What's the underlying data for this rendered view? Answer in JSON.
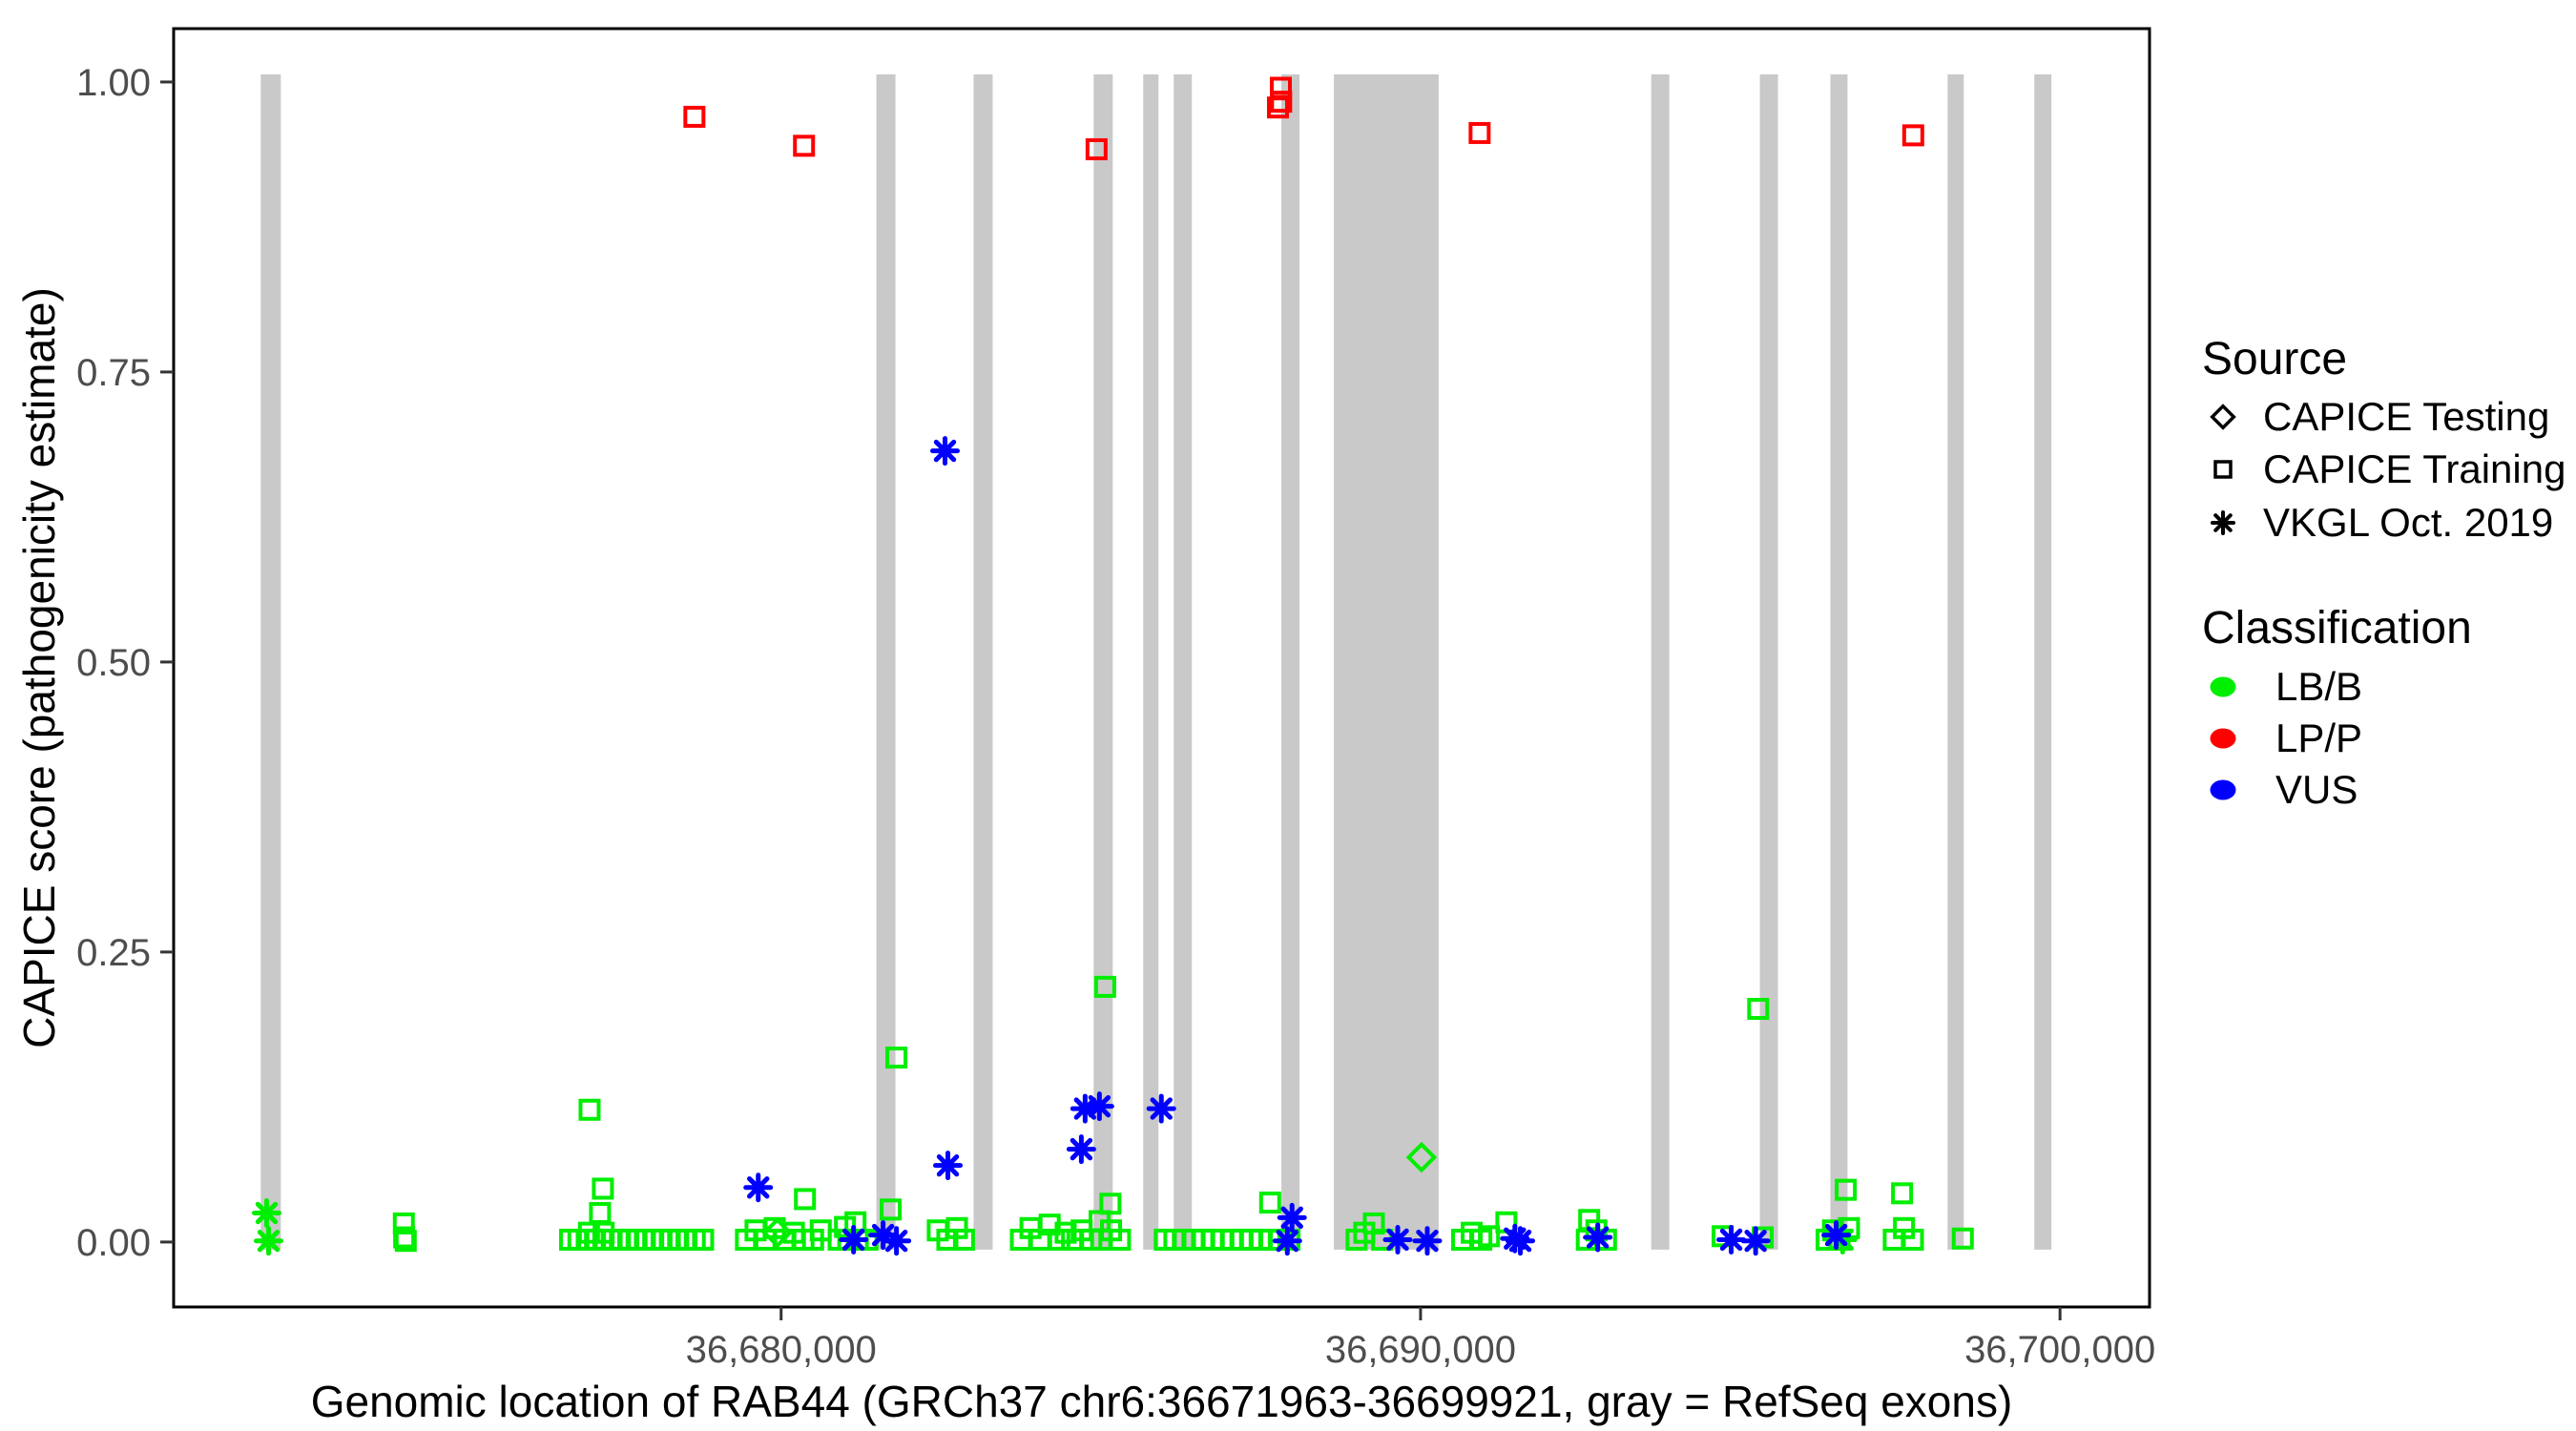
{
  "window": {
    "background": "#ffffff"
  },
  "colors": {
    "exon": "#C9C9C9",
    "panel_border": "#000000",
    "tick": "#333333",
    "axis_text": "#4D4D4D",
    "axis_title": "#000000",
    "legend_icon": "#000000",
    "lbb": "#00EE00",
    "lpp": "#FF0000",
    "vus": "#0000FF"
  },
  "chart_data": {
    "type": "scatter",
    "title": "",
    "xlabel": "Genomic location of RAB44 (GRCh37 chr6:36671963-36699921, gray = RefSeq exons)",
    "ylabel": "CAPICE score (pathogenicity estimate)",
    "x_domain": [
      36670500,
      36701400
    ],
    "y_domain": [
      -0.056,
      1.046
    ],
    "grid": "off",
    "legend_position": "right",
    "x_ticks": [
      {
        "value": 36680000,
        "label": "36,680,000"
      },
      {
        "value": 36690000,
        "label": "36,690,000"
      },
      {
        "value": 36700000,
        "label": "36,700,000"
      }
    ],
    "y_ticks": [
      {
        "value": 0.0,
        "label": "0.00"
      },
      {
        "value": 0.25,
        "label": "0.25"
      },
      {
        "value": 0.5,
        "label": "0.50"
      },
      {
        "value": 0.75,
        "label": "0.75"
      },
      {
        "value": 1.0,
        "label": "1.00"
      }
    ],
    "exon_note": "gray vertical bands = RefSeq exons, spanning score 0 to 1",
    "exons": [
      [
        36671863,
        36672176
      ],
      [
        36681490,
        36681788
      ],
      [
        36683010,
        36683308
      ],
      [
        36684888,
        36685186
      ],
      [
        36685663,
        36685901
      ],
      [
        36686140,
        36686423
      ],
      [
        36687824,
        36688107
      ],
      [
        36688644,
        36690283
      ],
      [
        36693607,
        36693890
      ],
      [
        36695306,
        36695589
      ],
      [
        36696409,
        36696677
      ],
      [
        36698242,
        36698495
      ],
      [
        36699598,
        36699866
      ]
    ],
    "legend": {
      "source": {
        "title": "Source",
        "items": [
          {
            "label": "CAPICE Testing",
            "shape": "diamond"
          },
          {
            "label": "CAPICE Training",
            "shape": "square"
          },
          {
            "label": "VKGL Oct. 2019",
            "shape": "asterisk"
          }
        ]
      },
      "classification": {
        "title": "Classification",
        "items": [
          {
            "label": "LB/B",
            "color": "#00EE00"
          },
          {
            "label": "LP/P",
            "color": "#FF0000"
          },
          {
            "label": "VUS",
            "color": "#0000FF"
          }
        ]
      }
    },
    "series": [
      {
        "name": "CAPICE Training / LB/B",
        "source": "CAPICE Training",
        "classification": "LB/B",
        "shape": "square",
        "color": "#00EE00",
        "points": [
          [
            36674100,
            0.016
          ],
          [
            36674105,
            0.004
          ],
          [
            36674130,
            0.001
          ],
          [
            36677005,
            0.114
          ],
          [
            36677213,
            0.046
          ],
          [
            36677168,
            0.025
          ],
          [
            36676995,
            0.008
          ],
          [
            36677225,
            0.008
          ],
          [
            36676700,
            0.002
          ],
          [
            36676830,
            0.002
          ],
          [
            36676960,
            0.002
          ],
          [
            36677090,
            0.002
          ],
          [
            36677220,
            0.002
          ],
          [
            36677350,
            0.002
          ],
          [
            36677480,
            0.002
          ],
          [
            36677610,
            0.002
          ],
          [
            36677740,
            0.002
          ],
          [
            36677870,
            0.002
          ],
          [
            36678000,
            0.002
          ],
          [
            36678130,
            0.002
          ],
          [
            36678260,
            0.002
          ],
          [
            36678390,
            0.002
          ],
          [
            36678520,
            0.002
          ],
          [
            36678650,
            0.002
          ],
          [
            36678780,
            0.002
          ],
          [
            36679450,
            0.002
          ],
          [
            36679600,
            0.01
          ],
          [
            36679755,
            0.002
          ],
          [
            36679900,
            0.012
          ],
          [
            36680050,
            0.002
          ],
          [
            36680200,
            0.008
          ],
          [
            36680350,
            0.002
          ],
          [
            36680500,
            0.002
          ],
          [
            36680620,
            0.01
          ],
          [
            36680373,
            0.037
          ],
          [
            36680999,
            0.013
          ],
          [
            36681163,
            0.017
          ],
          [
            36680900,
            0.002
          ],
          [
            36681050,
            0.002
          ],
          [
            36681200,
            0.002
          ],
          [
            36681350,
            0.002
          ],
          [
            36681714,
            0.028
          ],
          [
            36681803,
            0.159
          ],
          [
            36682450,
            0.01
          ],
          [
            36682600,
            0.002
          ],
          [
            36682750,
            0.012
          ],
          [
            36682860,
            0.002
          ],
          [
            36683750,
            0.002
          ],
          [
            36683900,
            0.012
          ],
          [
            36684050,
            0.002
          ],
          [
            36684200,
            0.015
          ],
          [
            36684350,
            0.002
          ],
          [
            36684450,
            0.008
          ],
          [
            36684550,
            0.002
          ],
          [
            36684700,
            0.01
          ],
          [
            36684850,
            0.002
          ],
          [
            36684980,
            0.018
          ],
          [
            36685005,
            0.002
          ],
          [
            36685150,
            0.033
          ],
          [
            36685160,
            0.01
          ],
          [
            36685300,
            0.002
          ],
          [
            36685068,
            0.22
          ],
          [
            36686000,
            0.002
          ],
          [
            36686150,
            0.002
          ],
          [
            36686300,
            0.002
          ],
          [
            36686450,
            0.002
          ],
          [
            36686600,
            0.002
          ],
          [
            36686750,
            0.002
          ],
          [
            36686900,
            0.002
          ],
          [
            36687050,
            0.002
          ],
          [
            36687200,
            0.002
          ],
          [
            36687350,
            0.002
          ],
          [
            36687500,
            0.002
          ],
          [
            36687650,
            0.002
          ],
          [
            36687800,
            0.002
          ],
          [
            36687950,
            0.002
          ],
          [
            36687648,
            0.034
          ],
          [
            36689000,
            0.002
          ],
          [
            36689120,
            0.008
          ],
          [
            36689270,
            0.016
          ],
          [
            36689400,
            0.002
          ],
          [
            36690650,
            0.002
          ],
          [
            36690800,
            0.008
          ],
          [
            36690950,
            0.002
          ],
          [
            36691070,
            0.005
          ],
          [
            36691342,
            0.017
          ],
          [
            36692637,
            0.019
          ],
          [
            36692600,
            0.002
          ],
          [
            36692750,
            0.01
          ],
          [
            36692900,
            0.002
          ],
          [
            36694724,
            0.005
          ],
          [
            36695280,
            0.201
          ],
          [
            36695350,
            0.004
          ],
          [
            36696350,
            0.002
          ],
          [
            36696450,
            0.01
          ],
          [
            36696550,
            0.002
          ],
          [
            36696650,
            0.045
          ],
          [
            36696700,
            0.012
          ],
          [
            36697400,
            0.002
          ],
          [
            36697530,
            0.042
          ],
          [
            36697560,
            0.012
          ],
          [
            36697700,
            0.002
          ],
          [
            36698480,
            0.003
          ]
        ]
      },
      {
        "name": "CAPICE Testing / LB/B",
        "source": "CAPICE Testing",
        "classification": "LB/B",
        "shape": "diamond",
        "color": "#00EE00",
        "points": [
          [
            36679940,
            0.008
          ],
          [
            36690015,
            0.073
          ]
        ]
      },
      {
        "name": "VKGL Oct. 2019 / LB/B",
        "source": "VKGL Oct. 2019",
        "classification": "LB/B",
        "shape": "asterisk",
        "color": "#00EE00",
        "points": [
          [
            36671955,
            0.025
          ],
          [
            36671985,
            0.001
          ],
          [
            36696600,
            0.002
          ]
        ]
      },
      {
        "name": "VKGL Oct. 2019 / VUS",
        "source": "VKGL Oct. 2019",
        "classification": "VUS",
        "shape": "asterisk",
        "color": "#0000FF",
        "points": [
          [
            36682563,
            0.682
          ],
          [
            36679642,
            0.047
          ],
          [
            36682608,
            0.066
          ],
          [
            36684695,
            0.08
          ],
          [
            36684754,
            0.115
          ],
          [
            36684978,
            0.117
          ],
          [
            36685946,
            0.115
          ],
          [
            36687990,
            0.021
          ],
          [
            36687916,
            0.001
          ],
          [
            36681133,
            0.002
          ],
          [
            36681595,
            0.006
          ],
          [
            36681804,
            0.001
          ],
          [
            36689643,
            0.002
          ],
          [
            36690105,
            0.001
          ],
          [
            36691475,
            0.003
          ],
          [
            36691560,
            0.001
          ],
          [
            36692771,
            0.004
          ],
          [
            36694858,
            0.002
          ],
          [
            36695240,
            0.001
          ],
          [
            36696500,
            0.006
          ]
        ]
      },
      {
        "name": "CAPICE Training / LP/P",
        "source": "CAPICE Training",
        "classification": "LP/P",
        "shape": "square",
        "color": "#FF0000",
        "points": [
          [
            36678644,
            0.97
          ],
          [
            36680358,
            0.945
          ],
          [
            36684933,
            0.942
          ],
          [
            36687815,
            0.995
          ],
          [
            36687820,
            0.983
          ],
          [
            36687770,
            0.978
          ],
          [
            36690924,
            0.956
          ],
          [
            36697705,
            0.954
          ]
        ]
      }
    ]
  }
}
